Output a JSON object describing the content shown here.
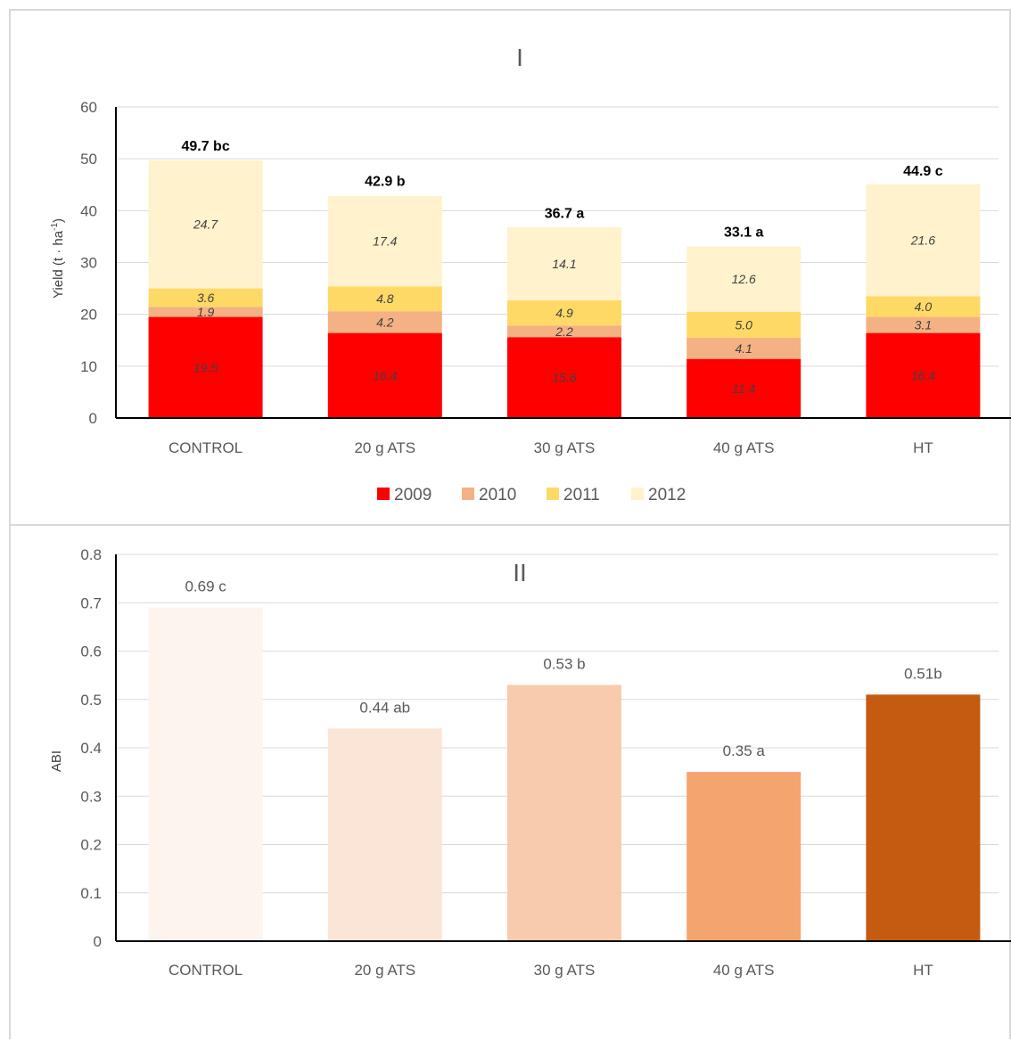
{
  "chart_data": [
    {
      "type": "bar",
      "stacked": true,
      "title": "I",
      "ylabel": "Yield (t · ha",
      "ylabel_sup": "-1",
      "ylabel_close": ")",
      "ylim": [
        0,
        60
      ],
      "yticks": [
        "0",
        "10",
        "20",
        "30",
        "40",
        "50",
        "60"
      ],
      "ytick_values": [
        0,
        10,
        20,
        30,
        40,
        50,
        60
      ],
      "grid": true,
      "legend_position": "bottom",
      "categories": [
        "CONTROL",
        "20 g ATS",
        "30 g ATS",
        "40 g ATS",
        "HT"
      ],
      "series": [
        {
          "name": "2009",
          "color": "#ff0000",
          "values": [
            19.5,
            16.4,
            15.6,
            11.4,
            16.4
          ],
          "labels": [
            "19.5",
            "16.4",
            "15.6",
            "11.4",
            "16.4"
          ]
        },
        {
          "name": "2010",
          "color": "#f4b183",
          "values": [
            1.9,
            4.2,
            2.2,
            4.1,
            3.1
          ],
          "labels": [
            "1.9",
            "4.2",
            "2.2",
            "4.1",
            "3.1"
          ]
        },
        {
          "name": "2011",
          "color": "#ffd966",
          "values": [
            3.6,
            4.8,
            4.9,
            5.0,
            4.0
          ],
          "labels": [
            "3.6",
            "4.8",
            "4.9",
            "5.0",
            "4.0"
          ]
        },
        {
          "name": "2012",
          "color": "#fff2cc",
          "values": [
            24.7,
            17.4,
            14.1,
            12.6,
            21.6
          ],
          "labels": [
            "24.7",
            "17.4",
            "14.1",
            "12.6",
            "21.6"
          ]
        }
      ],
      "totals": [
        49.7,
        42.9,
        36.7,
        33.1,
        44.9
      ],
      "total_labels": [
        "49.7 bc",
        "42.9 b",
        "36.7 a",
        "33.1 a",
        "44.9 c"
      ]
    },
    {
      "type": "bar",
      "title": "II",
      "ylabel": "ABI",
      "ylim": [
        0,
        0.8
      ],
      "yticks": [
        "0",
        "0.1",
        "0.2",
        "0.3",
        "0.4",
        "0.5",
        "0.6",
        "0.7",
        "0.8"
      ],
      "ytick_values": [
        0,
        0.1,
        0.2,
        0.3,
        0.4,
        0.5,
        0.6,
        0.7,
        0.8
      ],
      "grid": true,
      "categories": [
        "CONTROL",
        "20 g ATS",
        "30 g ATS",
        "40 g ATS",
        "HT"
      ],
      "values": [
        0.69,
        0.44,
        0.53,
        0.35,
        0.51
      ],
      "value_labels": [
        "0.69 c",
        "0.44 ab",
        "0.53 b",
        "0.35 a",
        "0.51b"
      ],
      "colors": [
        "#fdf4ee",
        "#fbe5d6",
        "#f8cbad",
        "#f4a46d",
        "#c55a11"
      ]
    }
  ]
}
